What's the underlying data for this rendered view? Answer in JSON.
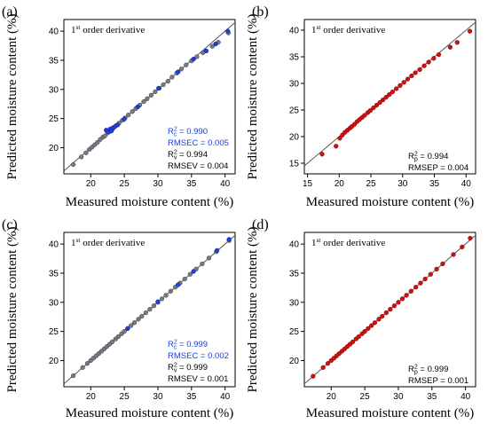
{
  "figure": {
    "colors": {
      "calibration": "#1f3fd6",
      "validation": "#000000",
      "prediction": "#cc1111",
      "gray_point": "#7a7a7a",
      "fit_line": "#555555"
    }
  },
  "chart_data": [
    {
      "type": "scatter",
      "panel": "(a)",
      "annotation": {
        "prefix": "1",
        "sup": "st",
        "suffix": " order derivative"
      },
      "xlabel": "Measured moisture content (%)",
      "ylabel": "Predicted moisture content (%)",
      "xlim": [
        16,
        41.5
      ],
      "ylim": [
        15.5,
        42
      ],
      "xticks": [
        "20",
        "25",
        "30",
        "35",
        "40"
      ],
      "yticks": [
        "20",
        "25",
        "30",
        "35",
        "40"
      ],
      "stats": [
        {
          "pre": "R",
          "sup": "2",
          "sub": "c",
          "post": " = 0.990",
          "role": "calibration"
        },
        {
          "pre": "RMSEC = 0.005",
          "sup": "",
          "sub": "",
          "post": "",
          "role": "calibration"
        },
        {
          "pre": "R",
          "sup": "2",
          "sub": "v",
          "post": " = 0.994",
          "role": "validation"
        },
        {
          "pre": "RMSEV = 0.004",
          "sup": "",
          "sub": "",
          "post": "",
          "role": "validation"
        }
      ],
      "series": [
        {
          "role": "validation",
          "color": "gray",
          "x": [
            17.4,
            18.6,
            19.3,
            19.8,
            20.2,
            20.6,
            21.0,
            21.4,
            21.8,
            22.1,
            22.5,
            22.9,
            23.3,
            23.8,
            24.2,
            24.7,
            25.1,
            25.6,
            26.2,
            26.7,
            27.3,
            27.9,
            28.4,
            29.0,
            29.6,
            30.2,
            30.8,
            31.5,
            32.1,
            32.8,
            33.5,
            34.2,
            35.0,
            35.8,
            36.7,
            38.1,
            39.0,
            40.5
          ],
          "y": [
            17.1,
            18.4,
            19.1,
            19.7,
            20.1,
            20.5,
            20.9,
            21.4,
            21.8,
            22.0,
            22.5,
            22.8,
            23.3,
            23.8,
            24.2,
            24.7,
            25.1,
            25.6,
            26.2,
            26.7,
            27.3,
            27.9,
            28.4,
            29.0,
            29.6,
            30.2,
            30.8,
            31.4,
            32.1,
            32.8,
            33.5,
            34.2,
            34.9,
            35.6,
            36.3,
            37.4,
            38.1,
            39.7
          ]
        },
        {
          "role": "calibration",
          "color": "blue",
          "x": [
            22.3,
            22.6,
            22.9,
            23.1,
            23.3,
            23.6,
            24.0,
            25.0,
            27.0,
            30.1,
            33.0,
            35.3,
            37.2,
            38.6,
            40.4
          ],
          "y": [
            23.0,
            22.7,
            23.2,
            22.9,
            23.4,
            23.6,
            23.9,
            24.9,
            27.0,
            30.2,
            33.0,
            35.2,
            36.6,
            37.8,
            40.0
          ]
        }
      ]
    },
    {
      "type": "scatter",
      "panel": "(b)",
      "annotation": {
        "prefix": "1",
        "sup": "st",
        "suffix": " order derivative"
      },
      "xlabel": "Measured moisture content (%)",
      "ylabel": "Predicted moisture content (%)",
      "xlim": [
        14.5,
        41.5
      ],
      "ylim": [
        13,
        42
      ],
      "xticks": [
        "15",
        "20",
        "25",
        "30",
        "35",
        "40"
      ],
      "yticks": [
        "15",
        "20",
        "25",
        "30",
        "35",
        "40"
      ],
      "stats": [
        {
          "pre": "R",
          "sup": "2",
          "sub": "p",
          "post": " = 0.994",
          "role": "validation"
        },
        {
          "pre": "RMSEP = 0.004",
          "sup": "",
          "sub": "",
          "post": "",
          "role": "validation"
        }
      ],
      "series": [
        {
          "role": "prediction",
          "color": "red",
          "x": [
            17.3,
            19.5,
            20.1,
            20.5,
            20.9,
            21.3,
            21.7,
            22.0,
            22.4,
            22.8,
            23.2,
            23.6,
            24.0,
            24.5,
            24.9,
            25.4,
            25.9,
            26.4,
            26.9,
            27.4,
            27.9,
            28.4,
            29.0,
            29.6,
            30.2,
            30.8,
            31.4,
            32.0,
            32.7,
            33.4,
            34.1,
            34.9,
            35.7,
            37.5,
            38.6,
            40.6
          ],
          "y": [
            16.7,
            18.2,
            19.7,
            20.3,
            20.8,
            21.2,
            21.6,
            21.9,
            22.3,
            22.8,
            23.2,
            23.6,
            24.0,
            24.5,
            24.9,
            25.4,
            25.9,
            26.4,
            26.9,
            27.4,
            27.9,
            28.4,
            29.0,
            29.6,
            30.2,
            30.8,
            31.4,
            32.0,
            32.6,
            33.3,
            34.0,
            34.7,
            35.4,
            36.8,
            37.7,
            39.8
          ]
        }
      ]
    },
    {
      "type": "scatter",
      "panel": "(c)",
      "annotation": {
        "prefix": "1",
        "sup": "st",
        "suffix": " order derivative"
      },
      "xlabel": "Measured moisture content (%)",
      "ylabel": "Predicted moisture content (%)",
      "xlim": [
        16,
        41.5
      ],
      "ylim": [
        15.5,
        42
      ],
      "xticks": [
        "20",
        "25",
        "30",
        "35",
        "40"
      ],
      "yticks": [
        "20",
        "25",
        "30",
        "35",
        "40"
      ],
      "stats": [
        {
          "pre": "R",
          "sup": "2",
          "sub": "c",
          "post": " = 0.999",
          "role": "calibration"
        },
        {
          "pre": "RMSEC = 0.002",
          "sup": "",
          "sub": "",
          "post": "",
          "role": "calibration"
        },
        {
          "pre": "R",
          "sup": "2",
          "sub": "v",
          "post": " = 0.999",
          "role": "validation"
        },
        {
          "pre": "RMSEV = 0.001",
          "sup": "",
          "sub": "",
          "post": "",
          "role": "validation"
        }
      ],
      "series": [
        {
          "role": "validation",
          "color": "gray",
          "x": [
            17.4,
            18.8,
            19.5,
            20.0,
            20.4,
            20.8,
            21.2,
            21.6,
            22.0,
            22.4,
            22.8,
            23.2,
            23.7,
            24.1,
            24.6,
            25.0,
            25.5,
            26.0,
            26.5,
            27.1,
            27.6,
            28.2,
            28.8,
            29.4,
            30.0,
            30.6,
            31.2,
            31.9,
            32.6,
            33.3,
            34.0,
            34.8,
            35.7,
            36.6,
            37.6,
            38.7,
            40.6
          ],
          "y": [
            17.4,
            18.8,
            19.5,
            20.0,
            20.4,
            20.8,
            21.2,
            21.6,
            22.0,
            22.4,
            22.8,
            23.2,
            23.7,
            24.1,
            24.6,
            25.0,
            25.5,
            26.0,
            26.5,
            27.1,
            27.6,
            28.2,
            28.8,
            29.4,
            30.0,
            30.6,
            31.2,
            31.9,
            32.6,
            33.3,
            34.0,
            34.8,
            35.7,
            36.6,
            37.6,
            38.7,
            40.6
          ]
        },
        {
          "role": "calibration",
          "color": "blue",
          "x": [
            25.5,
            30.0,
            33.0,
            35.3,
            38.8,
            40.6
          ],
          "y": [
            25.5,
            30.1,
            33.0,
            35.3,
            38.9,
            40.8
          ]
        }
      ]
    },
    {
      "type": "scatter",
      "panel": "(d)",
      "annotation": {
        "prefix": "1",
        "sup": "st",
        "suffix": " order derivative"
      },
      "xlabel": "Measured moisture content (%)",
      "ylabel": "Predicted moisture content (%)",
      "xlim": [
        16,
        41.5
      ],
      "ylim": [
        15.5,
        42
      ],
      "xticks": [
        "20",
        "25",
        "30",
        "35",
        "40"
      ],
      "yticks": [
        "20",
        "25",
        "30",
        "35",
        "40"
      ],
      "stats": [
        {
          "pre": "R",
          "sup": "2",
          "sub": "p",
          "post": " = 0.999",
          "role": "validation"
        },
        {
          "pre": "RMSEP = 0.001",
          "sup": "",
          "sub": "",
          "post": "",
          "role": "validation"
        }
      ],
      "series": [
        {
          "role": "prediction",
          "color": "red",
          "x": [
            17.3,
            18.8,
            19.5,
            20.0,
            20.4,
            20.8,
            21.2,
            21.6,
            22.0,
            22.4,
            22.8,
            23.2,
            23.7,
            24.1,
            24.6,
            25.0,
            25.5,
            26.0,
            26.5,
            27.1,
            27.6,
            28.2,
            28.8,
            29.4,
            30.0,
            30.6,
            31.2,
            31.9,
            32.6,
            33.3,
            34.0,
            34.8,
            35.7,
            36.6,
            38.2,
            39.5,
            40.7
          ],
          "y": [
            17.3,
            18.8,
            19.5,
            20.0,
            20.4,
            20.8,
            21.2,
            21.6,
            22.0,
            22.4,
            22.8,
            23.2,
            23.7,
            24.1,
            24.6,
            25.0,
            25.5,
            26.0,
            26.5,
            27.1,
            27.6,
            28.2,
            28.8,
            29.4,
            30.0,
            30.6,
            31.2,
            31.9,
            32.6,
            33.3,
            34.0,
            34.8,
            35.7,
            36.6,
            38.2,
            39.5,
            41.0
          ]
        }
      ]
    }
  ]
}
